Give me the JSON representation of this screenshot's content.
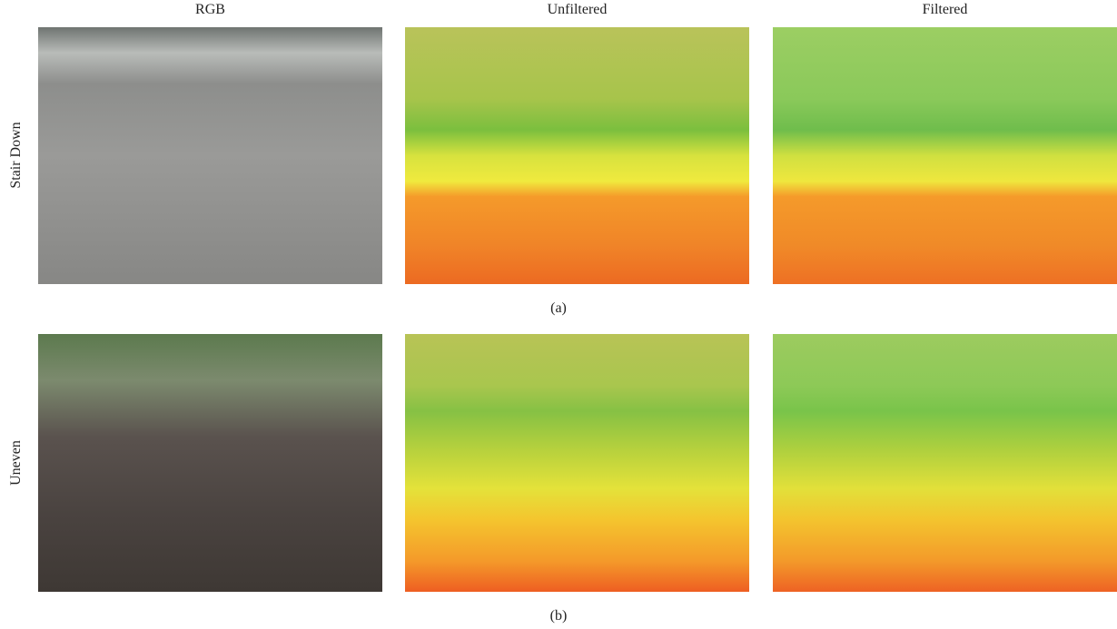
{
  "columns": [
    "RGB",
    "Unfiltered",
    "Filtered"
  ],
  "rows": [
    {
      "label": "Stair Down",
      "caption": "(a)"
    },
    {
      "label": "Uneven",
      "caption": "(b)"
    }
  ]
}
